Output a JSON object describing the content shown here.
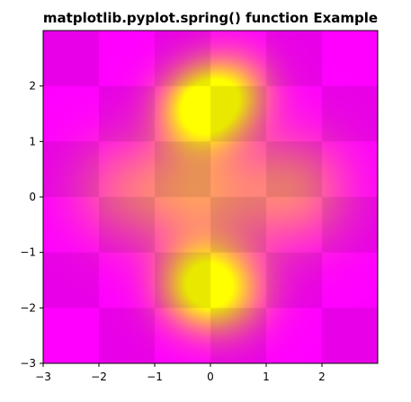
{
  "chart_data": {
    "type": "heatmap",
    "title": "matplotlib.pyplot.spring() function Example",
    "xlabel": "",
    "ylabel": "",
    "colormap": "spring",
    "colormap_colors": [
      "#ff00ff",
      "#ffff00"
    ],
    "alpha_overlay": 0.7,
    "xlim": [
      -3,
      3
    ],
    "ylim": [
      -3,
      3
    ],
    "x_ticks": [
      -3,
      -2,
      -1,
      0,
      1,
      2
    ],
    "y_ticks": [
      -3,
      -2,
      -1,
      0,
      1,
      2
    ],
    "x_tick_labels": [
      "−3",
      "−2",
      "−1",
      "0",
      "1",
      "2"
    ],
    "y_tick_labels": [
      "−3",
      "−2",
      "−1",
      "0",
      "1",
      "2"
    ],
    "grid": false,
    "layers": [
      {
        "name": "checkerboard",
        "kind": "binary",
        "rows": 6,
        "cols": 6
      },
      {
        "name": "gaussian-field",
        "kind": "continuous"
      }
    ]
  }
}
